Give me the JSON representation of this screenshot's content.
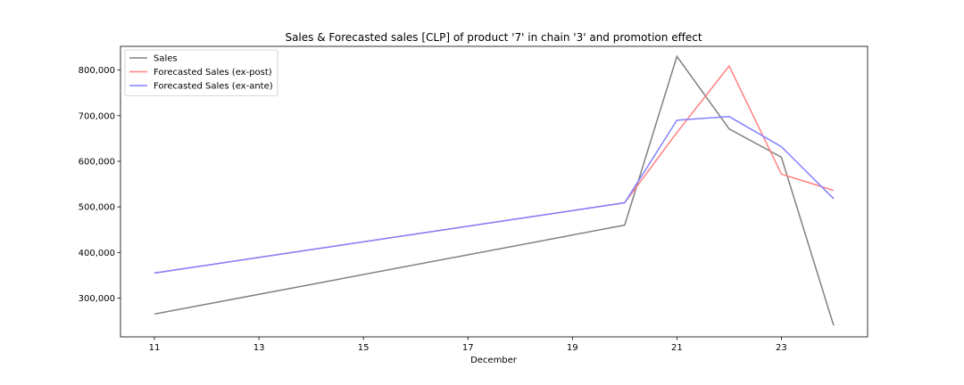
{
  "chart_data": {
    "type": "line",
    "title": "Sales & Forecasted sales [CLP] of product '7' in chain '3' and promotion effect",
    "xlabel": "December",
    "ylabel": "",
    "x": [
      11,
      20,
      21,
      22,
      23,
      24
    ],
    "xlim": [
      10.35,
      24.65
    ],
    "ylim": [
      215000,
      852000
    ],
    "xticks": [
      11,
      13,
      15,
      17,
      19,
      21,
      23
    ],
    "yticks": [
      300000,
      400000,
      500000,
      600000,
      700000,
      800000
    ],
    "ytick_labels": [
      "300,000",
      "400,000",
      "500,000",
      "600,000",
      "700,000",
      "800,000"
    ],
    "grid": false,
    "legend_position": "top-left",
    "series": [
      {
        "name": "Sales",
        "color": "#808080",
        "values": [
          265000,
          460000,
          830000,
          671000,
          609000,
          240000
        ]
      },
      {
        "name": "Forecasted Sales (ex-post)",
        "color": "#ff8080",
        "values": [
          355000,
          509000,
          663000,
          809000,
          572000,
          536000
        ]
      },
      {
        "name": "Forecasted Sales (ex-ante)",
        "color": "#8080ff",
        "values": [
          355000,
          509000,
          690000,
          698000,
          632000,
          518000
        ]
      }
    ]
  }
}
